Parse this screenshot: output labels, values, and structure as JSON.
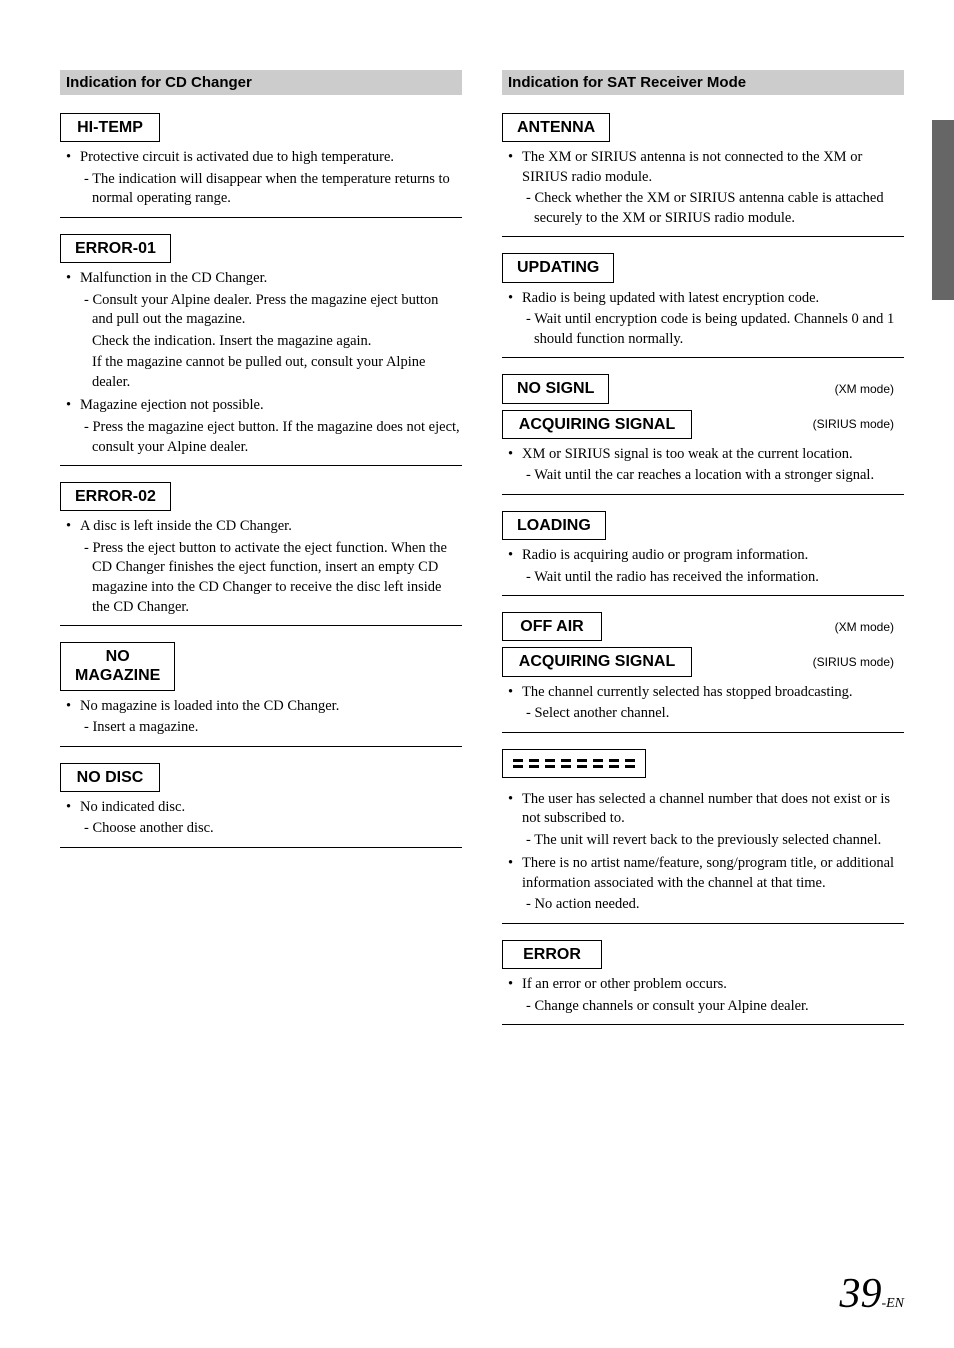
{
  "colors": {
    "section_header_bg": "#cccccc",
    "side_tab_bg": "#666666",
    "text": "#000000",
    "page_bg": "#ffffff",
    "rule": "#000000"
  },
  "typography": {
    "body_font": "Times New Roman",
    "heading_font": "Arial",
    "body_size_pt": 11,
    "code_size_pt": 12,
    "page_num_size_pt": 32
  },
  "left": {
    "header": "Indication for CD Changer",
    "blocks": [
      {
        "code": "HI-TEMP",
        "items": [
          {
            "text": "Protective circuit is activated due to high temperature.",
            "subs": [
              "The indication will disappear when the temperature returns to normal operating range."
            ]
          }
        ]
      },
      {
        "code": "ERROR-01",
        "items": [
          {
            "text": "Malfunction in the CD Changer.",
            "subs": [
              "Consult your Alpine dealer. Press the magazine eject button and pull out the magazine."
            ],
            "plain": [
              "Check the indication. Insert the magazine again.",
              "If the magazine cannot be pulled out, consult your Alpine dealer."
            ]
          },
          {
            "text": "Magazine ejection not possible.",
            "subs": [
              "Press the magazine eject button. If the magazine does not eject, consult your Alpine dealer."
            ]
          }
        ]
      },
      {
        "code": "ERROR-02",
        "items": [
          {
            "text": "A disc is left inside the CD Changer.",
            "subs": [
              "Press the eject button to activate the eject function. When the CD Changer finishes the eject function, insert an empty CD magazine into the CD Changer to receive the disc left inside the CD Changer."
            ]
          }
        ]
      },
      {
        "code": "NO\nMAGAZINE",
        "multi": true,
        "items": [
          {
            "text": "No magazine is loaded into the CD Changer.",
            "subs": [
              "Insert a magazine."
            ]
          }
        ]
      },
      {
        "code": "NO DISC",
        "items": [
          {
            "text": "No indicated disc.",
            "subs": [
              "Choose another disc."
            ]
          }
        ]
      }
    ]
  },
  "right": {
    "header": "Indication for SAT Receiver Mode",
    "blocks": [
      {
        "code": "ANTENNA",
        "items": [
          {
            "text": "The XM or SIRIUS antenna is not connected to the XM or SIRIUS radio module.",
            "subs": [
              "Check whether the XM or SIRIUS antenna cable is attached securely to the XM or SIRIUS radio module."
            ]
          }
        ]
      },
      {
        "code": "UPDATING",
        "items": [
          {
            "text": "Radio is being updated with latest encryption code.",
            "subs": [
              "Wait until encryption code is being updated. Channels 0 and 1 should function normally."
            ]
          }
        ]
      },
      {
        "pair": [
          {
            "code": "NO SIGNL",
            "note": "(XM mode)"
          },
          {
            "code": "ACQUIRING SIGNAL",
            "wide": true,
            "note": "(SIRIUS mode)"
          }
        ],
        "items": [
          {
            "text": "XM or SIRIUS signal is too weak at the current location.",
            "subs": [
              "Wait until the car reaches a location with a stronger signal."
            ]
          }
        ]
      },
      {
        "code": "LOADING",
        "items": [
          {
            "text": "Radio is acquiring audio or program information.",
            "subs": [
              "Wait until the radio has received the information."
            ]
          }
        ]
      },
      {
        "pair": [
          {
            "code": "OFF AIR",
            "note": "(XM mode)"
          },
          {
            "code": "ACQUIRING SIGNAL",
            "wide": true,
            "note": "(SIRIUS mode)"
          }
        ],
        "items": [
          {
            "text": "The channel currently selected has stopped broadcasting.",
            "subs": [
              "Select another channel."
            ]
          }
        ]
      },
      {
        "dashes": true,
        "dash_rows": 2,
        "dash_cols": 8,
        "items": [
          {
            "text": "The user has selected a channel number that does not exist or is not subscribed to.",
            "subs": [
              "The unit will revert back to the previously selected channel."
            ]
          },
          {
            "text": "There is no artist name/feature, song/program title, or additional information associated with the channel at that time.",
            "subs": [
              "No action needed."
            ]
          }
        ]
      },
      {
        "code": "ERROR",
        "items": [
          {
            "text": "If an error or other problem occurs.",
            "subs": [
              "Change channels or consult your Alpine dealer."
            ]
          }
        ]
      }
    ]
  },
  "page_number": {
    "main": "39",
    "suffix": "-EN"
  }
}
